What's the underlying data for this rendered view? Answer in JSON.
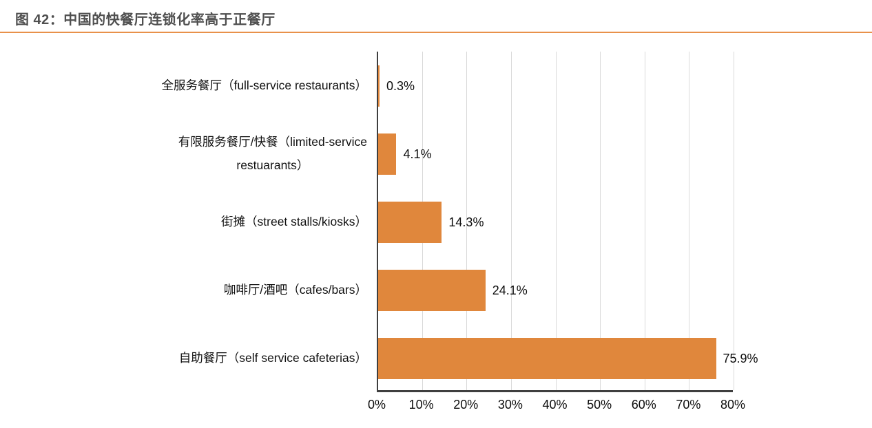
{
  "page": {
    "figure_label": "图 42：中国的快餐厅连锁化率高于正餐厅"
  },
  "colors": {
    "bar": "#e0873c",
    "title_text": "#4f4f4f",
    "title_rule": "#e8914a",
    "axis": "#3f3f3f",
    "gridline": "#d9d9d9",
    "text": "#0d0d0d",
    "background": "#ffffff"
  },
  "chart_data": {
    "type": "bar",
    "orientation": "horizontal",
    "title": "图 42：中国的快餐厅连锁化率高于正餐厅",
    "categories": [
      "全服务餐厅（full-service restaurants）",
      "有限服务餐厅/快餐（limited-service\nrestuarants）",
      "街摊（street stalls/kiosks）",
      "咖啡厅/酒吧（cafes/bars）",
      "自助餐厅（self service cafeterias）"
    ],
    "values": [
      0.3,
      4.1,
      14.3,
      24.1,
      75.9
    ],
    "value_labels": [
      "0.3%",
      "4.1%",
      "14.3%",
      "24.1%",
      "75.9%"
    ],
    "xlim": [
      0,
      80
    ],
    "x_ticks": [
      "0%",
      "10%",
      "20%",
      "30%",
      "40%",
      "50%",
      "60%",
      "70%",
      "80%"
    ],
    "grid": "vertical",
    "legend": "none",
    "bar_color": "#e0873c"
  }
}
